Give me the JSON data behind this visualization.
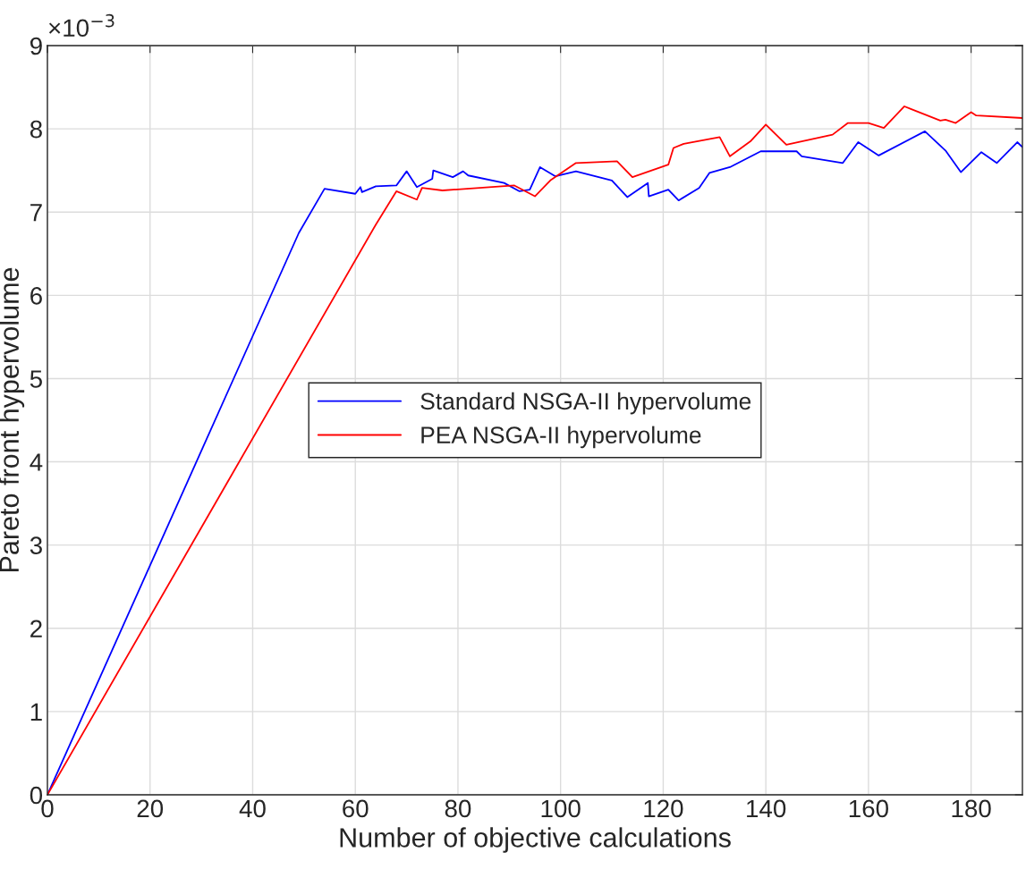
{
  "chart_data": {
    "type": "line",
    "xlabel": "Number of objective calculations",
    "ylabel": "Pareto front hypervolume",
    "annotations": [
      "×10$^{−3}$"
    ],
    "xlim": [
      0,
      190
    ],
    "xticks": [
      0,
      20,
      40,
      60,
      80,
      100,
      120,
      140,
      160,
      180
    ],
    "ylim": [
      0,
      9
    ],
    "yticks": [
      0,
      1,
      2,
      3,
      4,
      5,
      6,
      7,
      8,
      9
    ],
    "grid": true,
    "legend": "center",
    "marker": "none",
    "line_style": "solid",
    "series": [
      {
        "name": "Standard NSGA-II hypervolume",
        "color": "#0000ff",
        "x": [
          0,
          49,
          54,
          60,
          61,
          61.3,
          64,
          68,
          70,
          72,
          75,
          75.2,
          79,
          81,
          82,
          89,
          92,
          94,
          96,
          99,
          103,
          110,
          113,
          117,
          117.2,
          121,
          123,
          127,
          129,
          133,
          139,
          146,
          147,
          155,
          158,
          162,
          171,
          175,
          178,
          182,
          185,
          189,
          190
        ],
        "values": [
          0,
          6.75,
          7.28,
          7.22,
          7.3,
          7.24,
          7.31,
          7.32,
          7.49,
          7.3,
          7.4,
          7.5,
          7.42,
          7.49,
          7.44,
          7.35,
          7.25,
          7.27,
          7.54,
          7.43,
          7.49,
          7.38,
          7.18,
          7.35,
          7.19,
          7.27,
          7.14,
          7.29,
          7.47,
          7.54,
          7.73,
          7.73,
          7.67,
          7.59,
          7.84,
          7.68,
          7.97,
          7.74,
          7.48,
          7.72,
          7.59,
          7.84,
          7.78
        ]
      },
      {
        "name": "PEA NSGA-II hypervolume",
        "color": "#ff0000",
        "x": [
          0,
          64,
          68,
          72,
          73,
          77,
          91,
          95,
          98,
          103,
          111,
          114,
          121,
          122,
          124,
          131,
          133,
          137,
          140,
          144,
          153,
          156,
          160,
          163,
          167,
          174,
          175,
          177,
          180,
          181,
          190
        ],
        "values": [
          0,
          6.85,
          7.25,
          7.15,
          7.29,
          7.26,
          7.32,
          7.19,
          7.38,
          7.59,
          7.61,
          7.42,
          7.57,
          7.77,
          7.82,
          7.9,
          7.67,
          7.85,
          8.05,
          7.81,
          7.93,
          8.07,
          8.07,
          8.01,
          8.27,
          8.1,
          8.11,
          8.07,
          8.2,
          8.16,
          8.13
        ]
      }
    ]
  }
}
